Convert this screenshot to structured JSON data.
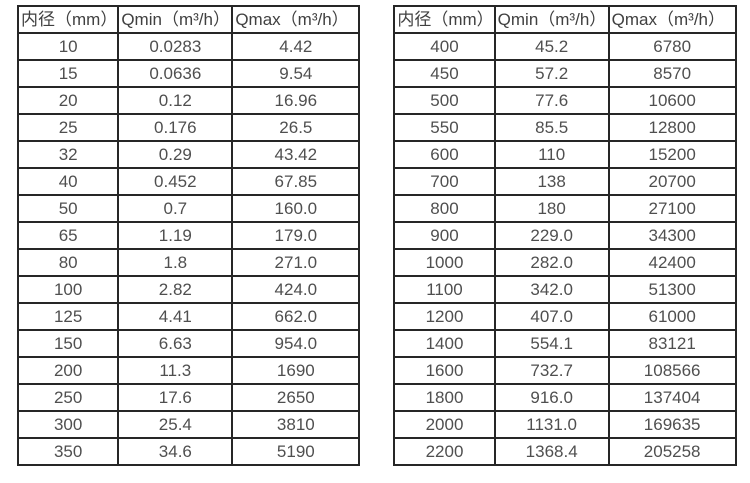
{
  "page": {
    "background_color": "#ffffff",
    "border_color": "#262626",
    "header_text_color": "#404040",
    "cell_text_color": "#4f4f4f"
  },
  "tables": [
    {
      "name": "flow-spec-table-small-diameters",
      "headers": [
        "内径（mm）",
        "Qmin（m³/h）",
        "Qmax（m³/h）"
      ],
      "rows": [
        [
          "10",
          "0.0283",
          "4.42"
        ],
        [
          "15",
          "0.0636",
          "9.54"
        ],
        [
          "20",
          "0.12",
          "16.96"
        ],
        [
          "25",
          "0.176",
          "26.5"
        ],
        [
          "32",
          "0.29",
          "43.42"
        ],
        [
          "40",
          "0.452",
          "67.85"
        ],
        [
          "50",
          "0.7",
          "160.0"
        ],
        [
          "65",
          "1.19",
          "179.0"
        ],
        [
          "80",
          "1.8",
          "271.0"
        ],
        [
          "100",
          "2.82",
          "424.0"
        ],
        [
          "125",
          "4.41",
          "662.0"
        ],
        [
          "150",
          "6.63",
          "954.0"
        ],
        [
          "200",
          "11.3",
          "1690"
        ],
        [
          "250",
          "17.6",
          "2650"
        ],
        [
          "300",
          "25.4",
          "3810"
        ],
        [
          "350",
          "34.6",
          "5190"
        ]
      ]
    },
    {
      "name": "flow-spec-table-large-diameters",
      "headers": [
        "内径（mm）",
        "Qmin（m³/h）",
        "Qmax（m³/h）"
      ],
      "rows": [
        [
          "400",
          "45.2",
          "6780"
        ],
        [
          "450",
          "57.2",
          "8570"
        ],
        [
          "500",
          "77.6",
          "10600"
        ],
        [
          "550",
          "85.5",
          "12800"
        ],
        [
          "600",
          "110",
          "15200"
        ],
        [
          "700",
          "138",
          "20700"
        ],
        [
          "800",
          "180",
          "27100"
        ],
        [
          "900",
          "229.0",
          "34300"
        ],
        [
          "1000",
          "282.0",
          "42400"
        ],
        [
          "1100",
          "342.0",
          "51300"
        ],
        [
          "1200",
          "407.0",
          "61000"
        ],
        [
          "1400",
          "554.1",
          "83121"
        ],
        [
          "1600",
          "732.7",
          "108566"
        ],
        [
          "1800",
          "916.0",
          "137404"
        ],
        [
          "2000",
          "1131.0",
          "169635"
        ],
        [
          "2200",
          "1368.4",
          "205258"
        ]
      ]
    }
  ]
}
